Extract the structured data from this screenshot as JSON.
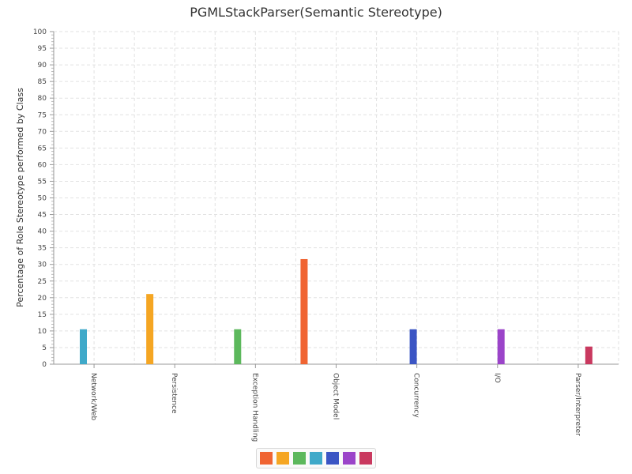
{
  "chart_data": {
    "type": "bar",
    "title": "PGMLStackParser(Semantic Stereotype)",
    "xlabel": "",
    "ylabel": "Percentage of Role Stereotype performed by Class",
    "ylim": [
      0,
      100
    ],
    "ytick_step": 5,
    "grid": true,
    "legend_position": "bottom-center",
    "categories": [
      "Network/Web",
      "Persistence",
      "Exception Handling",
      "Object Model",
      "Concurrency",
      "I/O",
      "Parser/Interpreter"
    ],
    "series": [
      {
        "color": "#f06432",
        "values": [
          0,
          0,
          0,
          31.6,
          0,
          0,
          0
        ]
      },
      {
        "color": "#f5a623",
        "values": [
          0,
          21.1,
          0,
          0,
          0,
          0,
          0
        ]
      },
      {
        "color": "#5cb85c",
        "values": [
          0,
          0,
          10.5,
          0,
          0,
          0,
          0
        ]
      },
      {
        "color": "#3fa9c9",
        "values": [
          10.5,
          0,
          0,
          0,
          0,
          0,
          0
        ]
      },
      {
        "color": "#3b55c4",
        "values": [
          0,
          0,
          0,
          0,
          10.5,
          0,
          0
        ]
      },
      {
        "color": "#9b44c9",
        "values": [
          0,
          0,
          0,
          0,
          0,
          10.5,
          0
        ]
      },
      {
        "color": "#c9395f",
        "values": [
          0,
          0,
          0,
          0,
          0,
          0,
          5.3
        ]
      }
    ]
  }
}
